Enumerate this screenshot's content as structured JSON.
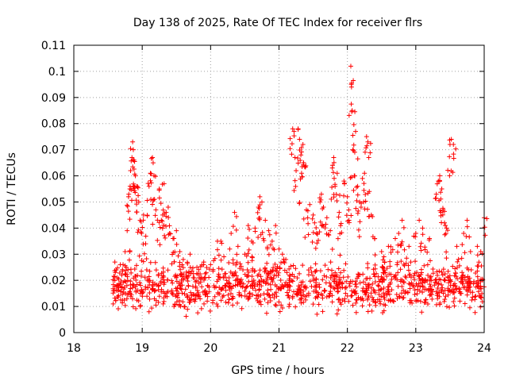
{
  "chart_data": {
    "type": "scatter",
    "title": "Day 138 of 2025, Rate Of TEC Index for receiver flrs",
    "xlabel": "GPS time / hours",
    "ylabel": "ROTI / TECUs",
    "xlim": [
      18,
      24
    ],
    "ylim": [
      0,
      0.11
    ],
    "x_ticks": [
      "18",
      "19",
      "20",
      "21",
      "22",
      "23",
      "24"
    ],
    "y_ticks": [
      "0",
      "0.01",
      "0.02",
      "0.03",
      "0.04",
      "0.05",
      "0.06",
      "0.07",
      "0.08",
      "0.09",
      "0.1",
      "0.11"
    ],
    "marker": "+",
    "color": "#ff0000",
    "grid": true,
    "baseline": {
      "x_range": [
        18.57,
        24.0
      ],
      "typical_range": [
        0.005,
        0.03
      ]
    },
    "series": [
      {
        "name": "ROTI",
        "points": [
          [
            18.6,
            0.027
          ],
          [
            18.62,
            0.024
          ],
          [
            18.65,
            0.018
          ],
          [
            18.68,
            0.026
          ],
          [
            18.72,
            0.026
          ],
          [
            18.75,
            0.031
          ],
          [
            18.78,
            0.039
          ],
          [
            18.8,
            0.052
          ],
          [
            18.82,
            0.055
          ],
          [
            18.83,
            0.062
          ],
          [
            18.85,
            0.067
          ],
          [
            18.86,
            0.073
          ],
          [
            18.87,
            0.07
          ],
          [
            18.88,
            0.066
          ],
          [
            18.9,
            0.06
          ],
          [
            18.92,
            0.056
          ],
          [
            18.95,
            0.05
          ],
          [
            18.97,
            0.043
          ],
          [
            18.99,
            0.038
          ],
          [
            19.02,
            0.045
          ],
          [
            19.05,
            0.034
          ],
          [
            19.1,
            0.056
          ],
          [
            19.12,
            0.061
          ],
          [
            19.15,
            0.067
          ],
          [
            19.16,
            0.065
          ],
          [
            19.18,
            0.051
          ],
          [
            19.2,
            0.047
          ],
          [
            19.25,
            0.055
          ],
          [
            19.28,
            0.043
          ],
          [
            19.3,
            0.045
          ],
          [
            19.32,
            0.057
          ],
          [
            19.35,
            0.046
          ],
          [
            19.38,
            0.048
          ],
          [
            19.4,
            0.038
          ],
          [
            19.45,
            0.036
          ],
          [
            19.5,
            0.039
          ],
          [
            19.55,
            0.031
          ],
          [
            19.6,
            0.028
          ],
          [
            19.7,
            0.03
          ],
          [
            19.8,
            0.025
          ],
          [
            19.9,
            0.027
          ],
          [
            20.0,
            0.026
          ],
          [
            20.1,
            0.035
          ],
          [
            20.15,
            0.035
          ],
          [
            20.3,
            0.038
          ],
          [
            20.35,
            0.046
          ],
          [
            20.4,
            0.033
          ],
          [
            20.5,
            0.03
          ],
          [
            20.55,
            0.041
          ],
          [
            20.6,
            0.035
          ],
          [
            20.65,
            0.04
          ],
          [
            20.7,
            0.048
          ],
          [
            20.72,
            0.052
          ],
          [
            20.75,
            0.05
          ],
          [
            20.8,
            0.043
          ],
          [
            20.85,
            0.039
          ],
          [
            20.9,
            0.035
          ],
          [
            20.95,
            0.041
          ],
          [
            21.0,
            0.032
          ],
          [
            21.05,
            0.03
          ],
          [
            21.1,
            0.028
          ],
          [
            21.2,
            0.078
          ],
          [
            21.22,
            0.077
          ],
          [
            21.25,
            0.062
          ],
          [
            21.28,
            0.078
          ],
          [
            21.3,
            0.074
          ],
          [
            21.32,
            0.068
          ],
          [
            21.35,
            0.072
          ],
          [
            21.33,
            0.061
          ],
          [
            21.36,
            0.065
          ],
          [
            21.4,
            0.047
          ],
          [
            21.45,
            0.049
          ],
          [
            21.5,
            0.045
          ],
          [
            21.52,
            0.042
          ],
          [
            21.55,
            0.038
          ],
          [
            21.6,
            0.05
          ],
          [
            21.62,
            0.053
          ],
          [
            21.65,
            0.048
          ],
          [
            21.7,
            0.044
          ],
          [
            21.75,
            0.039
          ],
          [
            21.78,
            0.063
          ],
          [
            21.8,
            0.067
          ],
          [
            21.82,
            0.056
          ],
          [
            21.85,
            0.061
          ],
          [
            21.88,
            0.046
          ],
          [
            21.9,
            0.041
          ],
          [
            21.95,
            0.058
          ],
          [
            22.0,
            0.052
          ],
          [
            22.02,
            0.047
          ],
          [
            22.05,
            0.102
          ],
          [
            22.06,
            0.094
          ],
          [
            22.07,
            0.085
          ],
          [
            22.08,
            0.07
          ],
          [
            22.1,
            0.06
          ],
          [
            22.12,
            0.077
          ],
          [
            22.15,
            0.056
          ],
          [
            22.18,
            0.05
          ],
          [
            22.2,
            0.048
          ],
          [
            22.22,
            0.059
          ],
          [
            22.25,
            0.061
          ],
          [
            22.28,
            0.075
          ],
          [
            22.3,
            0.073
          ],
          [
            22.32,
            0.054
          ],
          [
            22.35,
            0.045
          ],
          [
            22.4,
            0.036
          ],
          [
            22.5,
            0.031
          ],
          [
            22.6,
            0.033
          ],
          [
            22.7,
            0.036
          ],
          [
            22.75,
            0.038
          ],
          [
            22.8,
            0.043
          ],
          [
            22.9,
            0.033
          ],
          [
            23.0,
            0.038
          ],
          [
            23.05,
            0.043
          ],
          [
            23.1,
            0.04
          ],
          [
            23.2,
            0.036
          ],
          [
            23.3,
            0.053
          ],
          [
            23.33,
            0.058
          ],
          [
            23.35,
            0.06
          ],
          [
            23.38,
            0.055
          ],
          [
            23.4,
            0.047
          ],
          [
            23.42,
            0.042
          ],
          [
            23.45,
            0.04
          ],
          [
            23.5,
            0.072
          ],
          [
            23.52,
            0.074
          ],
          [
            23.55,
            0.072
          ],
          [
            23.6,
            0.033
          ],
          [
            23.7,
            0.038
          ],
          [
            23.75,
            0.043
          ],
          [
            23.8,
            0.031
          ],
          [
            23.9,
            0.033
          ],
          [
            23.95,
            0.031
          ],
          [
            24.0,
            0.044
          ]
        ]
      }
    ]
  }
}
